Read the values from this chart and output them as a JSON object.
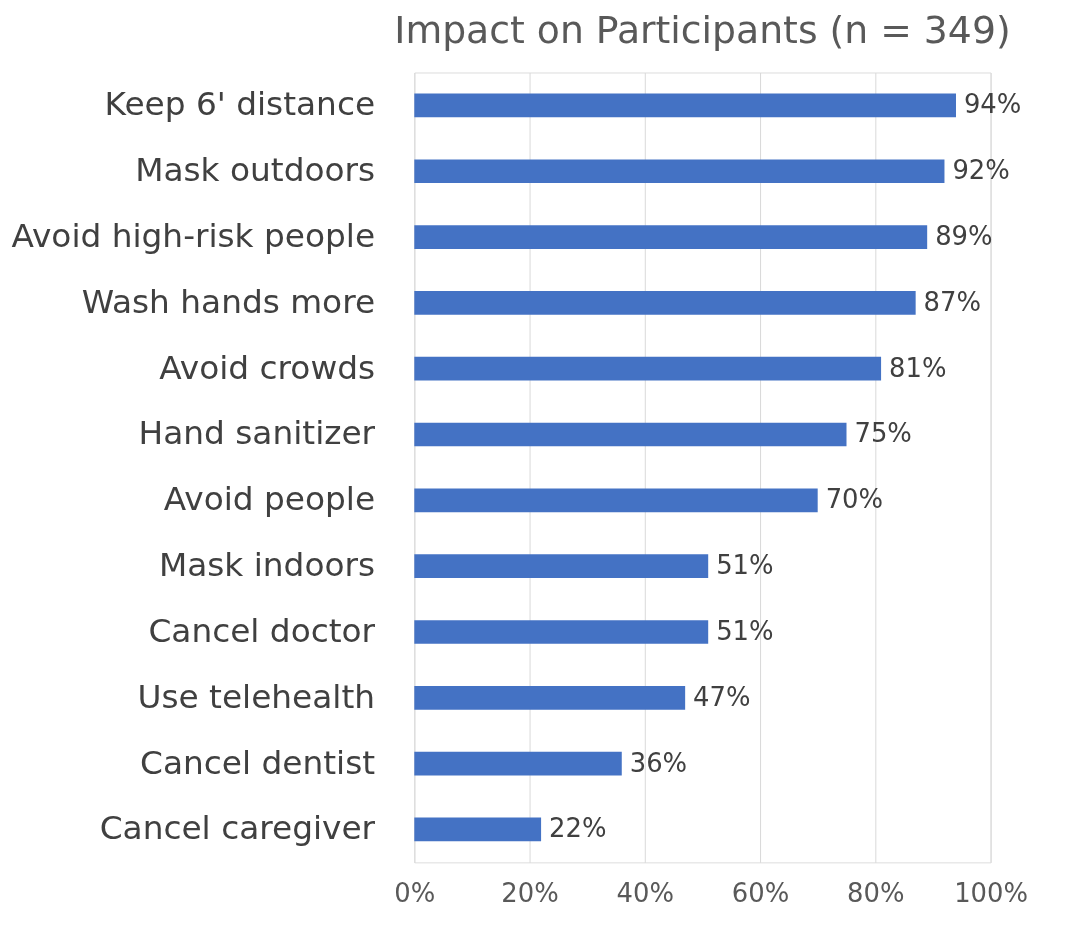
{
  "chart_data": {
    "type": "bar",
    "orientation": "horizontal",
    "title": "Impact on Participants (n = 349)",
    "categories": [
      "Keep 6' distance",
      "Mask outdoors",
      "Avoid high-risk people",
      "Wash hands more",
      "Avoid crowds",
      "Hand sanitizer",
      "Avoid people",
      "Mask indoors",
      "Cancel doctor",
      "Use telehealth",
      "Cancel dentist",
      "Cancel caregiver"
    ],
    "values": [
      94,
      92,
      89,
      87,
      81,
      75,
      70,
      51,
      51,
      47,
      36,
      22
    ],
    "value_labels": [
      "94%",
      "92%",
      "89%",
      "87%",
      "81%",
      "75%",
      "70%",
      "51%",
      "51%",
      "47%",
      "36%",
      "22%"
    ],
    "color": "#4472c4",
    "xlim": [
      0,
      100
    ],
    "xticks": [
      {
        "value": 0,
        "label": "0%"
      },
      {
        "value": 20,
        "label": "20%"
      },
      {
        "value": 40,
        "label": "40%"
      },
      {
        "value": 60,
        "label": "60%"
      },
      {
        "value": 80,
        "label": "80%"
      },
      {
        "value": 100,
        "label": "100%"
      }
    ],
    "grid": "x"
  }
}
